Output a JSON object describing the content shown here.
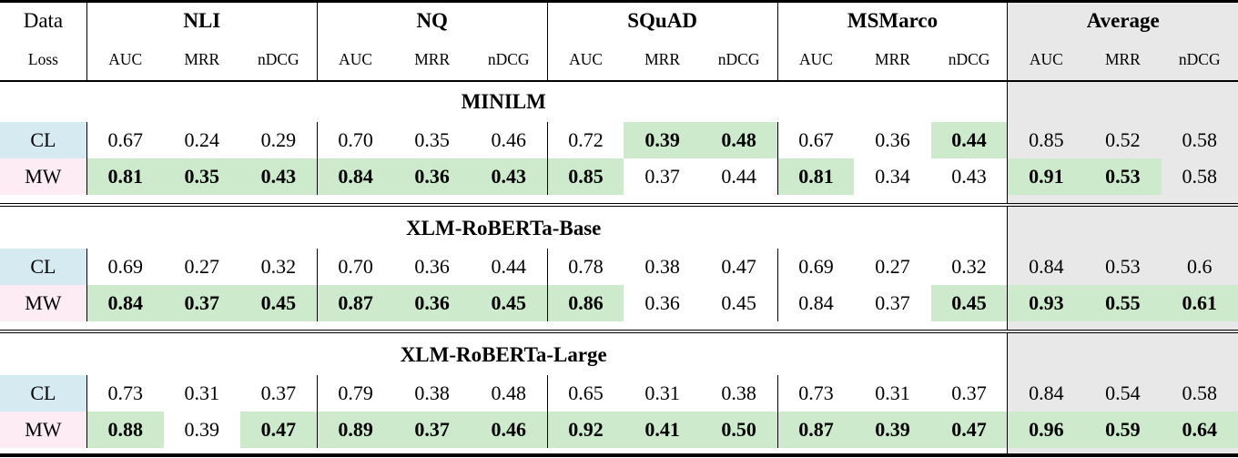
{
  "table": {
    "corner": {
      "line1": "Data",
      "line2": "Loss"
    },
    "groups": [
      {
        "label": "NLI"
      },
      {
        "label": "NQ"
      },
      {
        "label": "SQuAD"
      },
      {
        "label": "MSMarco"
      },
      {
        "label": "Average"
      }
    ],
    "metrics": [
      "AUC",
      "MRR",
      "nDCG"
    ],
    "colors": {
      "cl_row_bg": "#d6eaf2",
      "mw_row_bg": "#fdecf4",
      "highlight_bg": "#cdeacc",
      "average_bg": "#e8e8e8",
      "rule_color": "#000000"
    },
    "sections": [
      {
        "model": "MINILM",
        "rows": [
          {
            "label": "CL",
            "cells": [
              {
                "v": "0.67",
                "hl": 0
              },
              {
                "v": "0.24",
                "hl": 0
              },
              {
                "v": "0.29",
                "hl": 0
              },
              {
                "v": "0.70",
                "hl": 0
              },
              {
                "v": "0.35",
                "hl": 0
              },
              {
                "v": "0.46",
                "hl": 0
              },
              {
                "v": "0.72",
                "hl": 0
              },
              {
                "v": "0.39",
                "hl": 1
              },
              {
                "v": "0.48",
                "hl": 1
              },
              {
                "v": "0.67",
                "hl": 0
              },
              {
                "v": "0.36",
                "hl": 0
              },
              {
                "v": "0.44",
                "hl": 1
              },
              {
                "v": "0.85",
                "hl": 0
              },
              {
                "v": "0.52",
                "hl": 0
              },
              {
                "v": "0.58",
                "hl": 0
              }
            ]
          },
          {
            "label": "MW",
            "cells": [
              {
                "v": "0.81",
                "hl": 1
              },
              {
                "v": "0.35",
                "hl": 1
              },
              {
                "v": "0.43",
                "hl": 1
              },
              {
                "v": "0.84",
                "hl": 1
              },
              {
                "v": "0.36",
                "hl": 1
              },
              {
                "v": "0.43",
                "hl": 1
              },
              {
                "v": "0.85",
                "hl": 1
              },
              {
                "v": "0.37",
                "hl": 0
              },
              {
                "v": "0.44",
                "hl": 0
              },
              {
                "v": "0.81",
                "hl": 1
              },
              {
                "v": "0.34",
                "hl": 0
              },
              {
                "v": "0.43",
                "hl": 0
              },
              {
                "v": "0.91",
                "hl": 1
              },
              {
                "v": "0.53",
                "hl": 1
              },
              {
                "v": "0.58",
                "hl": 0
              }
            ]
          }
        ]
      },
      {
        "model": "XLM-RoBERTa-Base",
        "rows": [
          {
            "label": "CL",
            "cells": [
              {
                "v": "0.69",
                "hl": 0
              },
              {
                "v": "0.27",
                "hl": 0
              },
              {
                "v": "0.32",
                "hl": 0
              },
              {
                "v": "0.70",
                "hl": 0
              },
              {
                "v": "0.36",
                "hl": 0
              },
              {
                "v": "0.44",
                "hl": 0
              },
              {
                "v": "0.78",
                "hl": 0
              },
              {
                "v": "0.38",
                "hl": 0
              },
              {
                "v": "0.47",
                "hl": 0
              },
              {
                "v": "0.69",
                "hl": 0
              },
              {
                "v": "0.27",
                "hl": 0
              },
              {
                "v": "0.32",
                "hl": 0
              },
              {
                "v": "0.84",
                "hl": 0
              },
              {
                "v": "0.53",
                "hl": 0
              },
              {
                "v": "0.6",
                "hl": 0
              }
            ]
          },
          {
            "label": "MW",
            "cells": [
              {
                "v": "0.84",
                "hl": 1
              },
              {
                "v": "0.37",
                "hl": 1
              },
              {
                "v": "0.45",
                "hl": 1
              },
              {
                "v": "0.87",
                "hl": 1
              },
              {
                "v": "0.36",
                "hl": 1
              },
              {
                "v": "0.45",
                "hl": 1
              },
              {
                "v": "0.86",
                "hl": 1
              },
              {
                "v": "0.36",
                "hl": 0
              },
              {
                "v": "0.45",
                "hl": 0
              },
              {
                "v": "0.84",
                "hl": 0
              },
              {
                "v": "0.37",
                "hl": 0
              },
              {
                "v": "0.45",
                "hl": 1
              },
              {
                "v": "0.93",
                "hl": 1
              },
              {
                "v": "0.55",
                "hl": 1
              },
              {
                "v": "0.61",
                "hl": 1
              }
            ]
          }
        ]
      },
      {
        "model": "XLM-RoBERTa-Large",
        "rows": [
          {
            "label": "CL",
            "cells": [
              {
                "v": "0.73",
                "hl": 0
              },
              {
                "v": "0.31",
                "hl": 0
              },
              {
                "v": "0.37",
                "hl": 0
              },
              {
                "v": "0.79",
                "hl": 0
              },
              {
                "v": "0.38",
                "hl": 0
              },
              {
                "v": "0.48",
                "hl": 0
              },
              {
                "v": "0.65",
                "hl": 0
              },
              {
                "v": "0.31",
                "hl": 0
              },
              {
                "v": "0.38",
                "hl": 0
              },
              {
                "v": "0.73",
                "hl": 0
              },
              {
                "v": "0.31",
                "hl": 0
              },
              {
                "v": "0.37",
                "hl": 0
              },
              {
                "v": "0.84",
                "hl": 0
              },
              {
                "v": "0.54",
                "hl": 0
              },
              {
                "v": "0.58",
                "hl": 0
              }
            ]
          },
          {
            "label": "MW",
            "cells": [
              {
                "v": "0.88",
                "hl": 1
              },
              {
                "v": "0.39",
                "hl": 0
              },
              {
                "v": "0.47",
                "hl": 1
              },
              {
                "v": "0.89",
                "hl": 1
              },
              {
                "v": "0.37",
                "hl": 1
              },
              {
                "v": "0.46",
                "hl": 1
              },
              {
                "v": "0.92",
                "hl": 1
              },
              {
                "v": "0.41",
                "hl": 1
              },
              {
                "v": "0.50",
                "hl": 1
              },
              {
                "v": "0.87",
                "hl": 1
              },
              {
                "v": "0.39",
                "hl": 1
              },
              {
                "v": "0.47",
                "hl": 1
              },
              {
                "v": "0.96",
                "hl": 1
              },
              {
                "v": "0.59",
                "hl": 1
              },
              {
                "v": "0.64",
                "hl": 1
              }
            ]
          }
        ]
      }
    ]
  }
}
